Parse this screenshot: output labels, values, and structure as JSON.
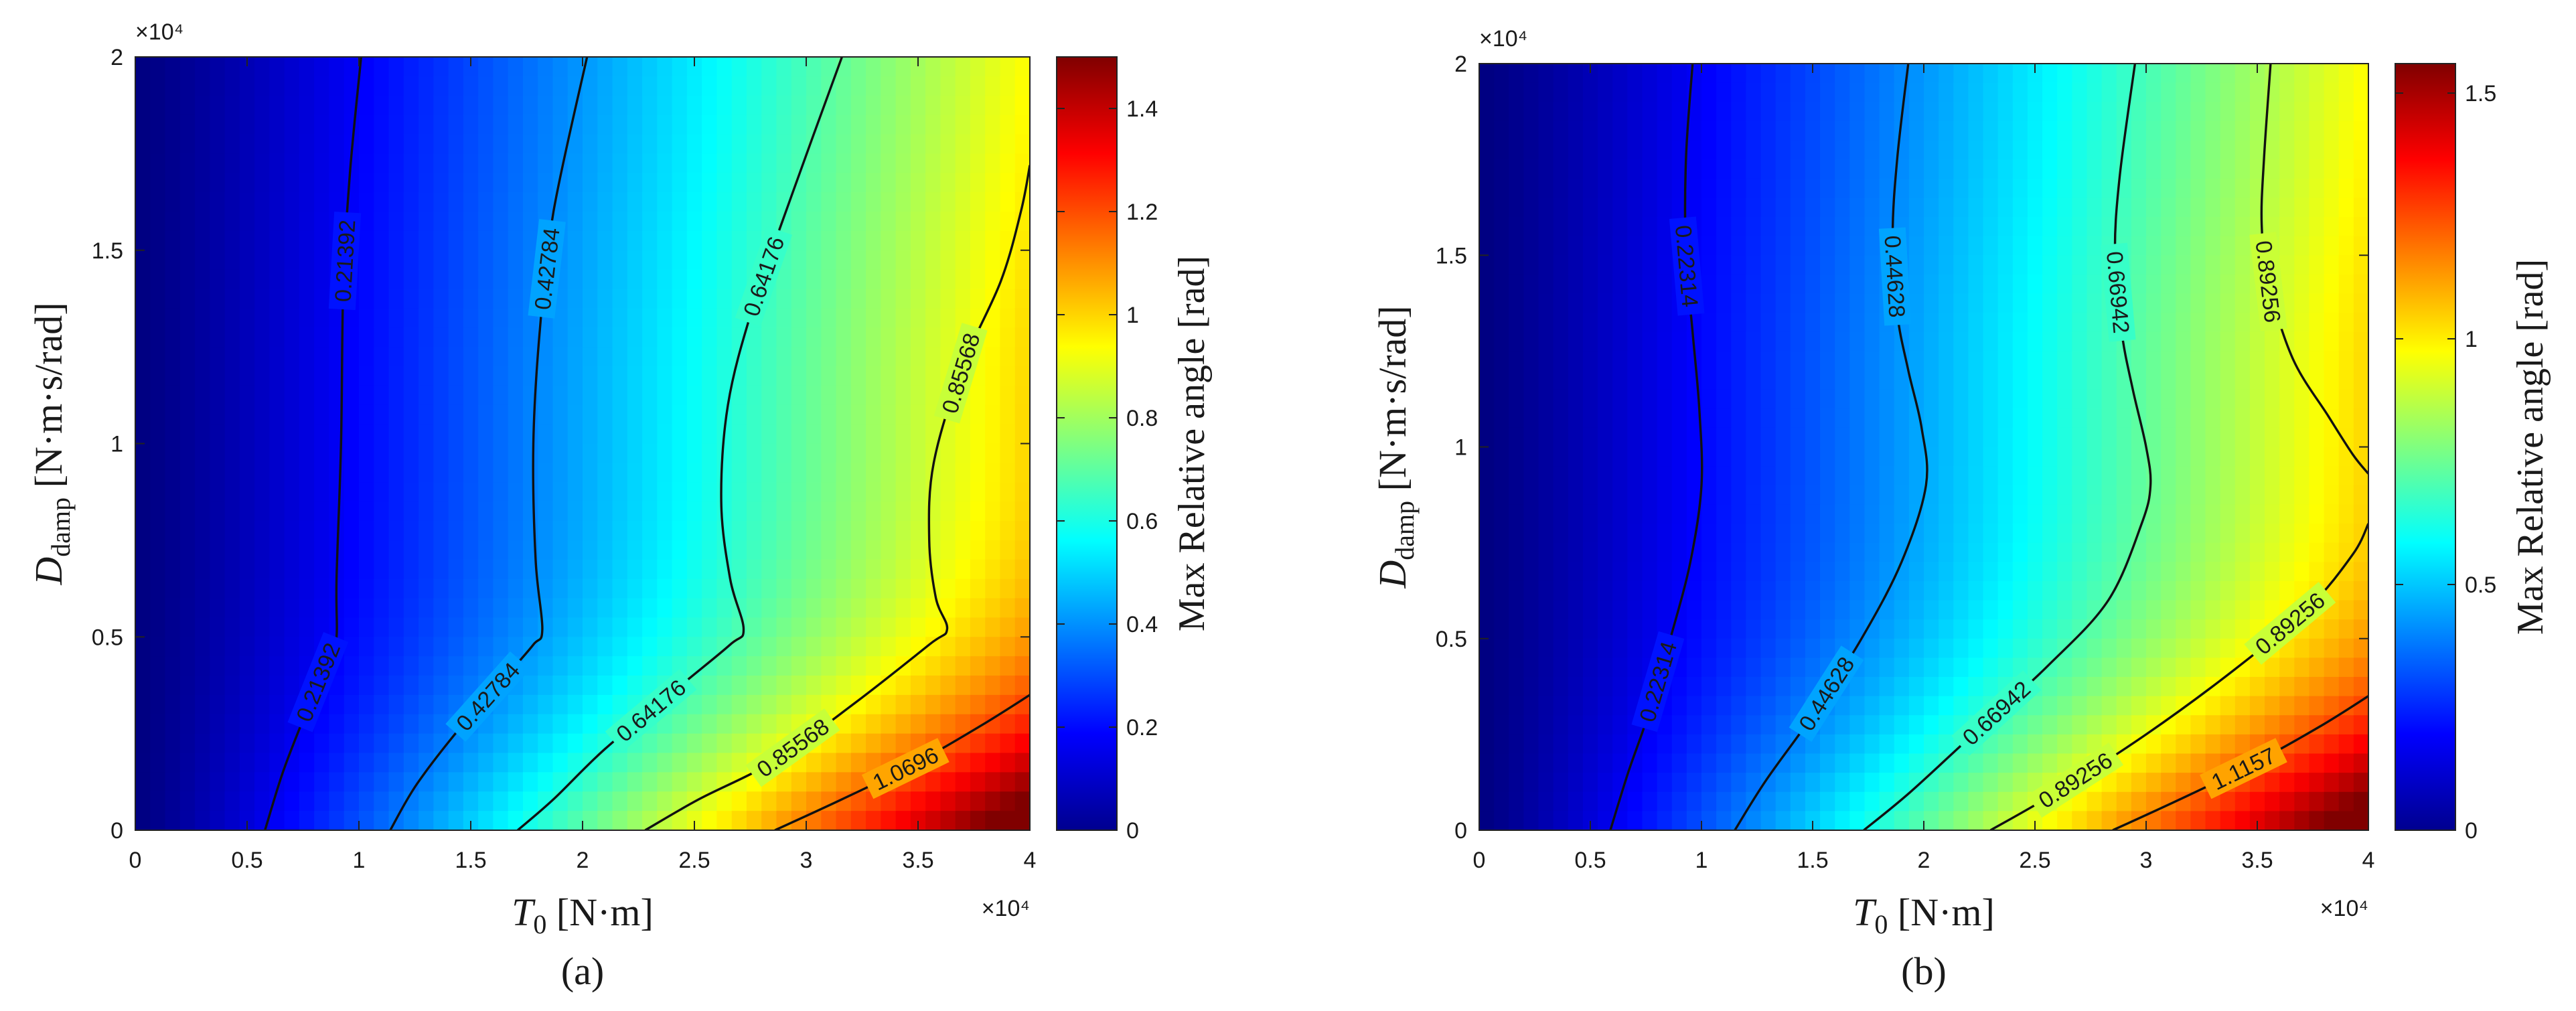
{
  "chart_data": [
    {
      "type": "heatmap",
      "caption": "(a)",
      "xlabel": "T0 [N·m]",
      "xlabel_main": "T",
      "xlabel_sub": "0",
      "xlabel_unit": "[N·m]",
      "ylabel": "Ddamp [N·m·s/rad]",
      "ylabel_main": "D",
      "ylabel_sub": "damp",
      "ylabel_unit": "[N·m·s/rad]",
      "x_multiplier": "×10⁴",
      "y_multiplier": "×10⁴",
      "x_ticks": [
        "0",
        "0.5",
        "1",
        "1.5",
        "2",
        "2.5",
        "3",
        "3.5",
        "4"
      ],
      "y_ticks": [
        "0",
        "0.5",
        "1",
        "1.5",
        "2"
      ],
      "xlim": [
        0,
        40000
      ],
      "ylim": [
        0,
        20000
      ],
      "colorbar_label": "Max Relative angle [rad]",
      "colorbar_range": [
        0,
        1.5
      ],
      "colorbar_ticks": [
        "0",
        "0.2",
        "0.4",
        "0.6",
        "0.8",
        "1",
        "1.2",
        "1.4"
      ],
      "colormap": "jet",
      "contours": [
        {
          "level": 0.21392,
          "label": "0.21392",
          "points": [
            [
              5800,
              0
            ],
            [
              6600,
              1500
            ],
            [
              7600,
              3000
            ],
            [
              8700,
              4600
            ],
            [
              9000,
              5000
            ],
            [
              9000,
              6500
            ],
            [
              9200,
              10000
            ],
            [
              9300,
              14000
            ],
            [
              9600,
              17000
            ],
            [
              10100,
              20000
            ]
          ]
        },
        {
          "level": 0.42784,
          "label": "0.42784",
          "points": [
            [
              11400,
              0
            ],
            [
              12600,
              1200
            ],
            [
              14600,
              2700
            ],
            [
              16600,
              4000
            ],
            [
              17800,
              4800
            ],
            [
              18200,
              5200
            ],
            [
              17900,
              7000
            ],
            [
              17800,
              10000
            ],
            [
              18100,
              13000
            ],
            [
              18700,
              16000
            ],
            [
              20200,
              20000
            ]
          ]
        },
        {
          "level": 0.64176,
          "label": "0.64176",
          "points": [
            [
              17100,
              0
            ],
            [
              18700,
              800
            ],
            [
              21000,
              2100
            ],
            [
              24300,
              3700
            ],
            [
              26600,
              4800
            ],
            [
              27200,
              5200
            ],
            [
              26600,
              6500
            ],
            [
              26200,
              8500
            ],
            [
              26500,
              11000
            ],
            [
              27600,
              13500
            ],
            [
              29400,
              16500
            ],
            [
              31600,
              20000
            ]
          ]
        },
        {
          "level": 0.85568,
          "label": "0.85568",
          "points": [
            [
              22800,
              0
            ],
            [
              25200,
              800
            ],
            [
              28600,
              1800
            ],
            [
              32200,
              3300
            ],
            [
              35500,
              4800
            ],
            [
              36300,
              5200
            ],
            [
              35800,
              6000
            ],
            [
              35500,
              7500
            ],
            [
              35700,
              9500
            ],
            [
              37000,
              12000
            ],
            [
              38700,
              14200
            ],
            [
              39600,
              16000
            ],
            [
              40000,
              17200
            ]
          ]
        },
        {
          "level": 1.0696,
          "label": "1.0696",
          "points": [
            [
              28600,
              0
            ],
            [
              31600,
              800
            ],
            [
              34800,
              1700
            ],
            [
              37800,
              2700
            ],
            [
              40000,
              3500
            ]
          ]
        }
      ]
    },
    {
      "type": "heatmap",
      "caption": "(b)",
      "xlabel": "T0 [N·m]",
      "xlabel_main": "T",
      "xlabel_sub": "0",
      "xlabel_unit": "[N·m]",
      "ylabel": "Ddamp [N·m·s/rad]",
      "ylabel_main": "D",
      "ylabel_sub": "damp",
      "ylabel_unit": "[N·m·s/rad]",
      "x_multiplier": "×10⁴",
      "y_multiplier": "×10⁴",
      "x_ticks": [
        "0",
        "0.5",
        "1",
        "1.5",
        "2",
        "2.5",
        "3",
        "3.5",
        "4"
      ],
      "y_ticks": [
        "0",
        "0.5",
        "1",
        "1.5",
        "2"
      ],
      "xlim": [
        0,
        40000
      ],
      "ylim": [
        0,
        20000
      ],
      "colorbar_label": "Max Relative angle [rad]",
      "colorbar_range": [
        0,
        1.56
      ],
      "colorbar_ticks": [
        "0",
        "0.5",
        "1",
        "1.5"
      ],
      "colormap": "jet",
      "contours": [
        {
          "level": 0.22314,
          "label": "0.22314",
          "points": [
            [
              5900,
              0
            ],
            [
              6700,
              1500
            ],
            [
              7600,
              3000
            ],
            [
              8600,
              5000
            ],
            [
              9500,
              7000
            ],
            [
              10000,
              9000
            ],
            [
              9900,
              11000
            ],
            [
              9600,
              13000
            ],
            [
              9300,
              15000
            ],
            [
              9300,
              17500
            ],
            [
              9600,
              20000
            ]
          ]
        },
        {
          "level": 0.44628,
          "label": "0.44628",
          "points": [
            [
              11500,
              0
            ],
            [
              12900,
              1300
            ],
            [
              15000,
              3000
            ],
            [
              17200,
              5000
            ],
            [
              19000,
              7000
            ],
            [
              20100,
              9000
            ],
            [
              19900,
              10500
            ],
            [
              19300,
              12000
            ],
            [
              18800,
              13500
            ],
            [
              18600,
              15500
            ],
            [
              18800,
              17500
            ],
            [
              19300,
              20000
            ]
          ]
        },
        {
          "level": 0.66942,
          "label": "0.66942",
          "points": [
            [
              17300,
              0
            ],
            [
              19400,
              1000
            ],
            [
              22400,
              2600
            ],
            [
              25600,
              4300
            ],
            [
              28300,
              6000
            ],
            [
              29800,
              8000
            ],
            [
              30200,
              9000
            ],
            [
              30000,
              10000
            ],
            [
              29400,
              11500
            ],
            [
              28900,
              13000
            ],
            [
              28600,
              15000
            ],
            [
              28800,
              17000
            ],
            [
              29500,
              20000
            ]
          ]
        },
        {
          "level": 0.89256,
          "label": "0.89256",
          "points": [
            [
              23000,
              0
            ],
            [
              26000,
              1000
            ],
            [
              30000,
              2500
            ],
            [
              34000,
              4200
            ],
            [
              37300,
              5800
            ],
            [
              39300,
              7200
            ],
            [
              40000,
              8000
            ]
          ]
        },
        {
          "level": 0.89256,
          "label": "0.89256",
          "points": [
            [
              35600,
              20000
            ],
            [
              35300,
              17500
            ],
            [
              35200,
              15800
            ],
            [
              35500,
              14300
            ],
            [
              36600,
              12300
            ],
            [
              38200,
              10800
            ],
            [
              39300,
              9800
            ],
            [
              40000,
              9300
            ]
          ]
        },
        {
          "level": 1.1157,
          "label": "1.1157",
          "points": [
            [
              28500,
              0
            ],
            [
              31500,
              800
            ],
            [
              34700,
              1700
            ],
            [
              37800,
              2700
            ],
            [
              40000,
              3500
            ]
          ]
        }
      ]
    }
  ]
}
